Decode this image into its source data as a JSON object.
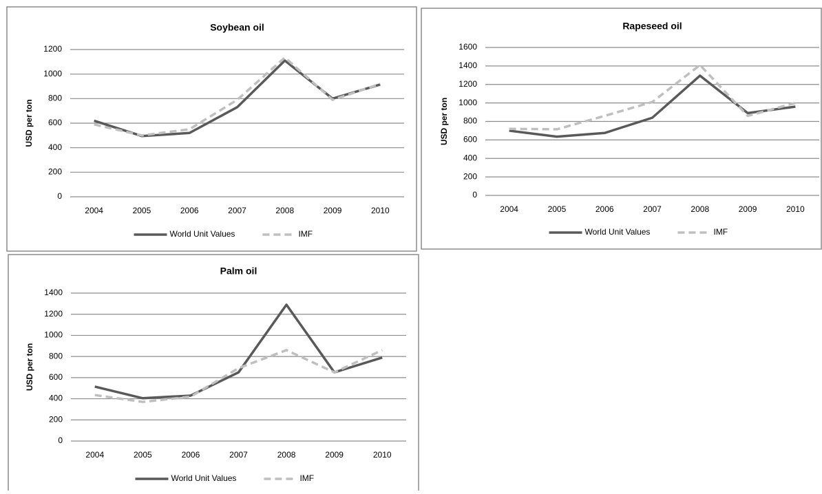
{
  "chart_data": [
    {
      "type": "line",
      "title": "Soybean oil",
      "y_label": "USD per ton",
      "categories": [
        "2004",
        "2005",
        "2006",
        "2007",
        "2008",
        "2009",
        "2010"
      ],
      "series": [
        {
          "name": "World Unit Values",
          "color": "#595959",
          "style": "solid",
          "values": [
            620,
            495,
            520,
            730,
            1110,
            800,
            915
          ]
        },
        {
          "name": "IMF",
          "color": "#bfbfbf",
          "style": "dashed",
          "values": [
            590,
            500,
            550,
            790,
            1135,
            790,
            920
          ]
        }
      ],
      "ylim": [
        0,
        1200
      ],
      "yticks": [
        0,
        200,
        400,
        600,
        800,
        1000,
        1200
      ],
      "grid": true,
      "legend": "bottom"
    },
    {
      "type": "line",
      "title": "Rapeseed oil",
      "y_label": "USD per ton",
      "categories": [
        "2004",
        "2005",
        "2006",
        "2007",
        "2008",
        "2009",
        "2010"
      ],
      "series": [
        {
          "name": "World Unit Values",
          "color": "#595959",
          "style": "solid",
          "values": [
            700,
            635,
            675,
            840,
            1295,
            890,
            960
          ]
        },
        {
          "name": "IMF",
          "color": "#bfbfbf",
          "style": "dashed",
          "values": [
            720,
            715,
            860,
            1010,
            1410,
            860,
            1000
          ]
        }
      ],
      "ylim": [
        0,
        1600
      ],
      "yticks": [
        0,
        200,
        400,
        600,
        800,
        1000,
        1200,
        1400,
        1600
      ],
      "grid": true,
      "legend": "bottom"
    },
    {
      "type": "line",
      "title": "Palm oil",
      "y_label": "USD per ton",
      "categories": [
        "2004",
        "2005",
        "2006",
        "2007",
        "2008",
        "2009",
        "2010"
      ],
      "series": [
        {
          "name": "World Unit Values",
          "color": "#595959",
          "style": "solid",
          "values": [
            515,
            405,
            430,
            650,
            1290,
            650,
            790
          ]
        },
        {
          "name": "IMF",
          "color": "#bfbfbf",
          "style": "dashed",
          "values": [
            435,
            370,
            420,
            690,
            860,
            650,
            860
          ]
        }
      ],
      "ylim": [
        0,
        1400
      ],
      "yticks": [
        0,
        200,
        400,
        600,
        800,
        1000,
        1200,
        1400
      ],
      "grid": true,
      "legend": "bottom"
    }
  ]
}
